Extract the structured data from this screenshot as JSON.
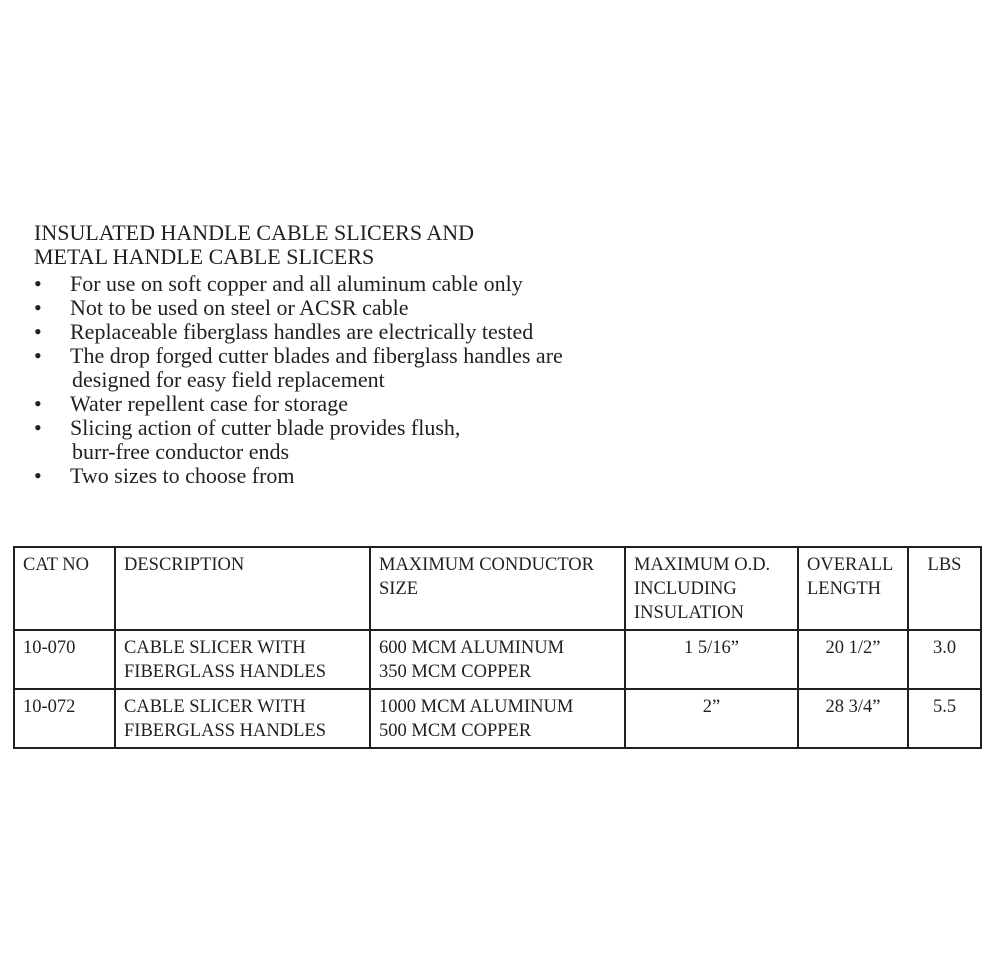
{
  "heading": [
    "INSULATED HANDLE CABLE SLICERS AND",
    "METAL HANDLE CABLE SLICERS"
  ],
  "bullet_glyph": "•",
  "bullets": [
    [
      "For use on soft copper and all aluminum cable only"
    ],
    [
      "Not to be used on steel or ACSR cable"
    ],
    [
      "Replaceable fiberglass handles are electrically tested"
    ],
    [
      "The drop forged cutter blades and fiberglass handles are",
      "designed for easy field replacement"
    ],
    [
      "Water repellent case for storage"
    ],
    [
      "Slicing action of cutter blade provides flush,",
      "burr-free conductor ends"
    ],
    [
      "Two sizes to choose from"
    ]
  ],
  "table": {
    "headers": [
      [
        "CAT NO"
      ],
      [
        "DESCRIPTION"
      ],
      [
        "MAXIMUM CONDUCTOR",
        "SIZE"
      ],
      [
        "MAXIMUM O.D.",
        "INCLUDING",
        "INSULATION"
      ],
      [
        "OVERALL",
        "LENGTH"
      ],
      [
        "LBS"
      ]
    ],
    "rows": [
      [
        [
          "10-070"
        ],
        [
          "CABLE SLICER WITH",
          "FIBERGLASS HANDLES"
        ],
        [
          "600 MCM ALUMINUM",
          "350 MCM COPPER"
        ],
        [
          "1 5/16”"
        ],
        [
          "20 1/2”"
        ],
        [
          "3.0"
        ]
      ],
      [
        [
          "10-072"
        ],
        [
          "CABLE SLICER WITH",
          "FIBERGLASS HANDLES"
        ],
        [
          "1000 MCM ALUMINUM",
          "500 MCM COPPER"
        ],
        [
          "2”"
        ],
        [
          "28 3/4”"
        ],
        [
          "5.5"
        ]
      ]
    ]
  }
}
